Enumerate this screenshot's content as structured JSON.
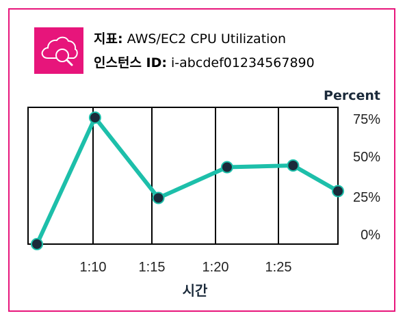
{
  "metric_row": {
    "label": "지표:",
    "value": "AWS/EC2 CPU Utilization"
  },
  "instance_row": {
    "label": "인스턴스 ID:",
    "value": "i-abcdef01234567890"
  },
  "logo": {
    "icon": "cloud-search-icon",
    "color": "#e7157b"
  },
  "colors": {
    "border": "#e7157b",
    "line": "#1dbfaa",
    "marker": "#1b2a3a"
  },
  "chart_data": {
    "type": "line",
    "title": "",
    "ylabel": "Percent",
    "xlabel": "시간",
    "x_ticks": [
      "1:10",
      "1:15",
      "1:20",
      "1:25"
    ],
    "y_ticks": [
      "0%",
      "25%",
      "50%",
      "75%"
    ],
    "ylim": [
      0,
      80
    ],
    "xlim": [
      1.0,
      12.4
    ],
    "grid": {
      "vertical": true,
      "horizontal": false
    },
    "legend": "none",
    "series": [
      {
        "points": [
          {
            "x": 1.0,
            "y": 0
          },
          {
            "x": 3.2,
            "y": 74
          },
          {
            "x": 5.6,
            "y": 27
          },
          {
            "x": 8.2,
            "y": 45
          },
          {
            "x": 10.7,
            "y": 46
          },
          {
            "x": 12.4,
            "y": 31
          }
        ]
      }
    ]
  }
}
